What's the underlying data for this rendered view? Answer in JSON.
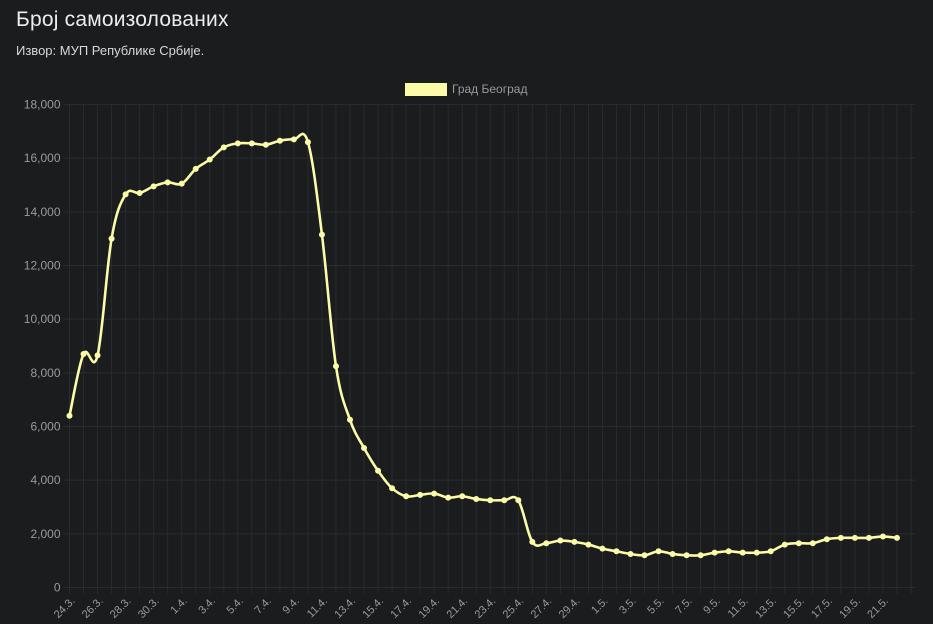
{
  "header": {
    "title": "Број самоизолованих",
    "subtitle": "Извор: МУП Републике Србије."
  },
  "colors": {
    "background": "#1b1c1e",
    "series": "#fbfba8",
    "grid": "#2a2b2d",
    "tick_text": "#9a9a9a"
  },
  "chart_data": {
    "type": "line",
    "title": "Број самоизолованих",
    "subtitle": "Извор: МУП Републике Србије.",
    "xlabel": "",
    "ylabel": "",
    "ylim": [
      0,
      18000
    ],
    "grid": true,
    "legend_position": "top",
    "y_ticks": [
      "0",
      "2,000",
      "4,000",
      "6,000",
      "8,000",
      "10,000",
      "12,000",
      "14,000",
      "16,000",
      "18,000"
    ],
    "x_tick_labels": [
      "24.3.",
      "26.3.",
      "28.3.",
      "30.3.",
      "1.4.",
      "3.4.",
      "5.4.",
      "7.4.",
      "9.4.",
      "11.4.",
      "13.4.",
      "15.4.",
      "17.4.",
      "19.4.",
      "21.4.",
      "23.4.",
      "25.4.",
      "27.4.",
      "29.4.",
      "1.5.",
      "3.5.",
      "5.5.",
      "7.5.",
      "9.5.",
      "11.5.",
      "13.5.",
      "15.5.",
      "17.5.",
      "19.5.",
      "21.5."
    ],
    "series": [
      {
        "name": "Град Београд",
        "values": [
          6400,
          8700,
          8650,
          13000,
          14650,
          14700,
          14950,
          15100,
          15050,
          15600,
          15950,
          16400,
          16550,
          16550,
          16500,
          16650,
          16700,
          16600,
          13150,
          8250,
          6250,
          5200,
          4350,
          3700,
          3400,
          3450,
          3500,
          3350,
          3400,
          3300,
          3250,
          3250,
          3250,
          1700,
          1650,
          1750,
          1700,
          1600,
          1450,
          1350,
          1250,
          1200,
          1350,
          1250,
          1200,
          1200,
          1300,
          1350,
          1300,
          1300,
          1350,
          1600,
          1650,
          1650,
          1800,
          1850,
          1850,
          1850,
          1900,
          1850
        ]
      }
    ]
  }
}
